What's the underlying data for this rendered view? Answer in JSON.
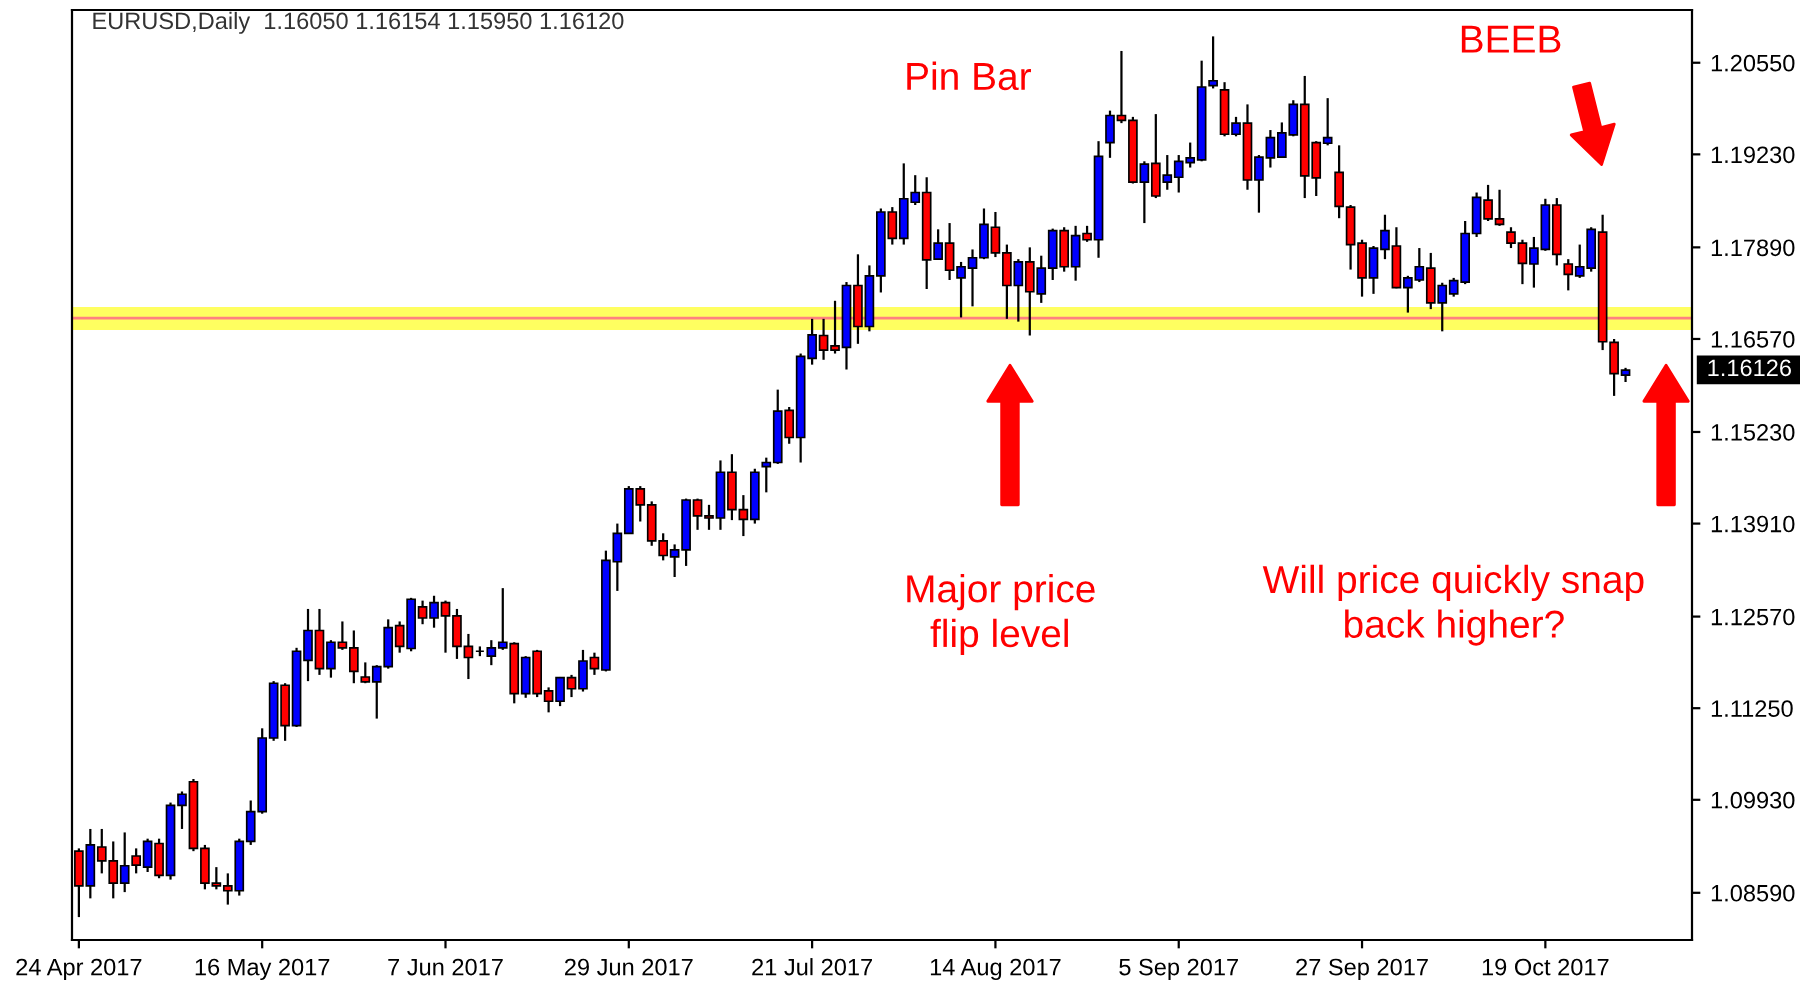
{
  "chart_data": {
    "type": "candlestick",
    "title": "EURUSD,Daily  1.16050 1.16154 1.15950 1.16120",
    "categories": [
      "24 Apr 2017",
      null,
      null,
      null,
      null,
      null,
      null,
      null,
      null,
      null,
      null,
      null,
      null,
      null,
      null,
      null,
      "16 May 2017",
      null,
      null,
      null,
      null,
      null,
      null,
      null,
      null,
      null,
      null,
      null,
      null,
      null,
      null,
      null,
      "7 Jun 2017",
      null,
      null,
      null,
      null,
      null,
      null,
      null,
      null,
      null,
      null,
      null,
      null,
      null,
      null,
      null,
      "29 Jun 2017",
      null,
      null,
      null,
      null,
      null,
      null,
      null,
      null,
      null,
      null,
      null,
      null,
      null,
      null,
      null,
      "21 Jul 2017",
      null,
      null,
      null,
      null,
      null,
      null,
      null,
      null,
      null,
      null,
      null,
      null,
      null,
      null,
      null,
      "14 Aug 2017",
      null,
      null,
      null,
      null,
      null,
      null,
      null,
      null,
      null,
      null,
      null,
      null,
      null,
      null,
      null,
      "5 Sep 2017",
      null,
      null,
      null,
      null,
      null,
      null,
      null,
      null,
      null,
      null,
      null,
      null,
      null,
      null,
      null,
      "27 Sep 2017",
      null,
      null,
      null,
      null,
      null,
      null,
      null,
      null,
      null,
      null,
      null,
      null,
      null,
      null,
      null,
      "19 Oct 2017",
      null,
      null,
      null,
      null,
      null,
      null,
      null
    ],
    "ohlc": [
      [
        1.0919,
        1.0923,
        1.0824,
        1.0869
      ],
      [
        1.0869,
        1.0951,
        1.0851,
        1.0928
      ],
      [
        1.0925,
        1.0951,
        1.0887,
        1.0905
      ],
      [
        1.0905,
        1.0933,
        1.0851,
        1.0873
      ],
      [
        1.0873,
        1.0946,
        1.086,
        1.0898
      ],
      [
        1.0912,
        1.0923,
        1.0887,
        1.0899
      ],
      [
        1.0896,
        1.0937,
        1.0889,
        1.0933
      ],
      [
        1.093,
        1.0937,
        1.088,
        1.0884
      ],
      [
        1.0884,
        1.0989,
        1.0878,
        1.0985
      ],
      [
        1.0985,
        1.1005,
        1.0951,
        1.1001
      ],
      [
        1.1019,
        1.1023,
        1.0919,
        1.0923
      ],
      [
        1.0923,
        1.0928,
        1.0864,
        1.0873
      ],
      [
        1.0873,
        1.0896,
        1.0864,
        1.0869
      ],
      [
        1.0869,
        1.0887,
        1.0842,
        1.0862
      ],
      [
        1.0862,
        1.0937,
        1.0855,
        1.0933
      ],
      [
        1.0933,
        1.0992,
        1.0928,
        1.0976
      ],
      [
        1.0976,
        1.1096,
        1.0973,
        1.1082
      ],
      [
        1.1082,
        1.1164,
        1.1078,
        1.1161
      ],
      [
        1.1158,
        1.1161,
        1.1078,
        1.11
      ],
      [
        1.11,
        1.1212,
        1.1098,
        1.1207
      ],
      [
        1.1194,
        1.1268,
        1.1164,
        1.1237
      ],
      [
        1.1237,
        1.1268,
        1.1173,
        1.1182
      ],
      [
        1.1182,
        1.1223,
        1.1169,
        1.122
      ],
      [
        1.122,
        1.125,
        1.1209,
        1.1212
      ],
      [
        1.1212,
        1.1237,
        1.1161,
        1.1178
      ],
      [
        1.117,
        1.1191,
        1.1161,
        1.1163
      ],
      [
        1.1163,
        1.1187,
        1.111,
        1.1185
      ],
      [
        1.1185,
        1.1253,
        1.1182,
        1.1241
      ],
      [
        1.1244,
        1.125,
        1.1205,
        1.1214
      ],
      [
        1.1211,
        1.1284,
        1.1207,
        1.1282
      ],
      [
        1.1271,
        1.128,
        1.1246,
        1.1255
      ],
      [
        1.1255,
        1.1287,
        1.1241,
        1.1277
      ],
      [
        1.1277,
        1.128,
        1.1205,
        1.1258
      ],
      [
        1.1258,
        1.1268,
        1.1196,
        1.1214
      ],
      [
        1.1214,
        1.1232,
        1.1167,
        1.1198
      ],
      [
        1.1207,
        1.1214,
        1.12,
        1.1207
      ],
      [
        1.12,
        1.1223,
        1.1187,
        1.1212
      ],
      [
        1.1212,
        1.1298,
        1.1209,
        1.122
      ],
      [
        1.1218,
        1.122,
        1.1132,
        1.1146
      ],
      [
        1.1146,
        1.12,
        1.114,
        1.1198
      ],
      [
        1.1207,
        1.1209,
        1.1141,
        1.1146
      ],
      [
        1.115,
        1.1155,
        1.1119,
        1.1135
      ],
      [
        1.1135,
        1.117,
        1.1128,
        1.1169
      ],
      [
        1.1169,
        1.1173,
        1.1141,
        1.1153
      ],
      [
        1.1153,
        1.1209,
        1.1149,
        1.1193
      ],
      [
        1.1198,
        1.1205,
        1.1173,
        1.1182
      ],
      [
        1.118,
        1.1352,
        1.1178,
        1.1338
      ],
      [
        1.1336,
        1.1391,
        1.1294,
        1.1377
      ],
      [
        1.1377,
        1.1445,
        1.1376,
        1.1441
      ],
      [
        1.1441,
        1.1445,
        1.1394,
        1.1418
      ],
      [
        1.1418,
        1.1423,
        1.1359,
        1.1366
      ],
      [
        1.1366,
        1.1377,
        1.1338,
        1.1345
      ],
      [
        1.1343,
        1.1361,
        1.1314,
        1.1353
      ],
      [
        1.1353,
        1.1427,
        1.133,
        1.1425
      ],
      [
        1.1425,
        1.1427,
        1.1382,
        1.1402
      ],
      [
        1.1402,
        1.1418,
        1.1382,
        1.1399
      ],
      [
        1.1399,
        1.1482,
        1.1382,
        1.1465
      ],
      [
        1.1465,
        1.1491,
        1.1396,
        1.1411
      ],
      [
        1.1411,
        1.1432,
        1.1373,
        1.1397
      ],
      [
        1.1397,
        1.147,
        1.1391,
        1.1465
      ],
      [
        1.1473,
        1.1486,
        1.1436,
        1.1479
      ],
      [
        1.1479,
        1.1584,
        1.1477,
        1.1553
      ],
      [
        1.1554,
        1.1559,
        1.1506,
        1.1515
      ],
      [
        1.1515,
        1.1636,
        1.1479,
        1.1632
      ],
      [
        1.1629,
        1.1686,
        1.162,
        1.1663
      ],
      [
        1.1662,
        1.1686,
        1.1627,
        1.1641
      ],
      [
        1.1647,
        1.1712,
        1.1636,
        1.1641
      ],
      [
        1.1645,
        1.1739,
        1.1613,
        1.1734
      ],
      [
        1.1734,
        1.1779,
        1.165,
        1.1675
      ],
      [
        1.1675,
        1.1763,
        1.1668,
        1.1748
      ],
      [
        1.1748,
        1.1845,
        1.1724,
        1.184
      ],
      [
        1.184,
        1.1847,
        1.1793,
        1.1802
      ],
      [
        1.1802,
        1.191,
        1.1793,
        1.1859
      ],
      [
        1.1854,
        1.1893,
        1.185,
        1.1868
      ],
      [
        1.1868,
        1.189,
        1.1729,
        1.1771
      ],
      [
        1.1772,
        1.1815,
        1.1771,
        1.1795
      ],
      [
        1.1795,
        1.1824,
        1.1742,
        1.1756
      ],
      [
        1.1745,
        1.1768,
        1.1688,
        1.1761
      ],
      [
        1.1759,
        1.1786,
        1.1704,
        1.1774
      ],
      [
        1.1774,
        1.1845,
        1.1772,
        1.1822
      ],
      [
        1.1818,
        1.184,
        1.1775,
        1.1781
      ],
      [
        1.1781,
        1.1793,
        1.1686,
        1.1734
      ],
      [
        1.1734,
        1.1772,
        1.1682,
        1.1768
      ],
      [
        1.1768,
        1.1789,
        1.1662,
        1.1725
      ],
      [
        1.1722,
        1.1777,
        1.1709,
        1.1759
      ],
      [
        1.1759,
        1.1816,
        1.1742,
        1.1813
      ],
      [
        1.1813,
        1.1818,
        1.1754,
        1.1761
      ],
      [
        1.1761,
        1.182,
        1.1741,
        1.1806
      ],
      [
        1.1809,
        1.182,
        1.1797,
        1.18
      ],
      [
        1.18,
        1.1942,
        1.1774,
        1.192
      ],
      [
        1.194,
        1.1986,
        1.1918,
        1.1979
      ],
      [
        1.1979,
        1.2072,
        1.1968,
        1.1972
      ],
      [
        1.1972,
        1.1977,
        1.1881,
        1.1883
      ],
      [
        1.1883,
        1.1913,
        1.1824,
        1.1909
      ],
      [
        1.191,
        1.1981,
        1.186,
        1.1863
      ],
      [
        1.1883,
        1.1922,
        1.1872,
        1.1893
      ],
      [
        1.189,
        1.1922,
        1.1868,
        1.1913
      ],
      [
        1.1911,
        1.194,
        1.1904,
        1.1918
      ],
      [
        1.1915,
        1.2058,
        1.1913,
        1.202
      ],
      [
        1.2022,
        1.2093,
        1.2018,
        1.2029
      ],
      [
        1.2016,
        1.2027,
        1.1949,
        1.1952
      ],
      [
        1.1952,
        1.1977,
        1.1949,
        1.1968
      ],
      [
        1.1968,
        1.1995,
        1.1872,
        1.1886
      ],
      [
        1.1886,
        1.1922,
        1.1839,
        1.1919
      ],
      [
        1.1918,
        1.1958,
        1.1904,
        1.1947
      ],
      [
        1.1919,
        1.1969,
        1.1918,
        1.1954
      ],
      [
        1.1951,
        1.2001,
        1.1949,
        1.1995
      ],
      [
        1.1995,
        1.2036,
        1.186,
        1.1892
      ],
      [
        1.194,
        1.1942,
        1.1863,
        1.1889
      ],
      [
        1.1939,
        1.2004,
        1.1936,
        1.1947
      ],
      [
        1.1897,
        1.1936,
        1.1831,
        1.1848
      ],
      [
        1.1847,
        1.185,
        1.1757,
        1.1793
      ],
      [
        1.1795,
        1.18,
        1.1718,
        1.1745
      ],
      [
        1.1745,
        1.1791,
        1.1722,
        1.1788
      ],
      [
        1.1786,
        1.1836,
        1.1772,
        1.1813
      ],
      [
        1.1791,
        1.1818,
        1.173,
        1.1731
      ],
      [
        1.1731,
        1.1748,
        1.1695,
        1.1745
      ],
      [
        1.1742,
        1.1788,
        1.1739,
        1.1761
      ],
      [
        1.1759,
        1.1781,
        1.17,
        1.1709
      ],
      [
        1.1709,
        1.1738,
        1.1668,
        1.1734
      ],
      [
        1.1722,
        1.1745,
        1.1718,
        1.1741
      ],
      [
        1.1739,
        1.1827,
        1.1736,
        1.1809
      ],
      [
        1.1809,
        1.1868,
        1.1804,
        1.1861
      ],
      [
        1.1857,
        1.1879,
        1.1827,
        1.183
      ],
      [
        1.183,
        1.1872,
        1.182,
        1.1822
      ],
      [
        1.1811,
        1.1818,
        1.1788,
        1.1795
      ],
      [
        1.1795,
        1.18,
        1.1736,
        1.1766
      ],
      [
        1.1765,
        1.1804,
        1.1731,
        1.1788
      ],
      [
        1.1786,
        1.1859,
        1.1784,
        1.185
      ],
      [
        1.185,
        1.186,
        1.1763,
        1.1779
      ],
      [
        1.1765,
        1.1772,
        1.1727,
        1.175
      ],
      [
        1.1748,
        1.1793,
        1.1745,
        1.1761
      ],
      [
        1.1759,
        1.1818,
        1.1754,
        1.1815
      ],
      [
        1.1811,
        1.1836,
        1.1641,
        1.1653
      ],
      [
        1.1652,
        1.1657,
        1.1575,
        1.1607
      ],
      [
        1.1605,
        1.16154,
        1.1595,
        1.1612
      ]
    ],
    "colors": [
      "#ff0000",
      "#0000ff",
      "#ff0000",
      "#ff0000",
      "#0000ff",
      "#ff0000",
      "#0000ff",
      "#ff0000",
      "#0000ff",
      "#0000ff",
      "#ff0000",
      "#ff0000",
      "#ff0000",
      "#ff0000",
      "#0000ff",
      "#0000ff",
      "#0000ff",
      "#0000ff",
      "#ff0000",
      "#0000ff",
      "#0000ff",
      "#ff0000",
      "#0000ff",
      "#ff0000",
      "#ff0000",
      "#ff0000",
      "#0000ff",
      "#0000ff",
      "#ff0000",
      "#0000ff",
      "#ff0000",
      "#0000ff",
      "#ff0000",
      "#ff0000",
      "#ff0000",
      "#000000",
      "#0000ff",
      "#0000ff",
      "#ff0000",
      "#0000ff",
      "#ff0000",
      "#ff0000",
      "#0000ff",
      "#ff0000",
      "#0000ff",
      "#ff0000",
      "#0000ff",
      "#0000ff",
      "#0000ff",
      "#ff0000",
      "#ff0000",
      "#ff0000",
      "#0000ff",
      "#0000ff",
      "#ff0000",
      "#ff0000",
      "#0000ff",
      "#ff0000",
      "#ff0000",
      "#0000ff",
      "#0000ff",
      "#0000ff",
      "#ff0000",
      "#0000ff",
      "#0000ff",
      "#ff0000",
      "#ff0000",
      "#0000ff",
      "#ff0000",
      "#0000ff",
      "#0000ff",
      "#ff0000",
      "#0000ff",
      "#0000ff",
      "#ff0000",
      "#0000ff",
      "#ff0000",
      "#0000ff",
      "#0000ff",
      "#0000ff",
      "#ff0000",
      "#ff0000",
      "#0000ff",
      "#ff0000",
      "#0000ff",
      "#0000ff",
      "#ff0000",
      "#0000ff",
      "#ff0000",
      "#0000ff",
      "#0000ff",
      "#ff0000",
      "#ff0000",
      "#0000ff",
      "#ff0000",
      "#0000ff",
      "#0000ff",
      "#0000ff",
      "#0000ff",
      "#0000ff",
      "#ff0000",
      "#0000ff",
      "#ff0000",
      "#0000ff",
      "#0000ff",
      "#0000ff",
      "#0000ff",
      "#ff0000",
      "#ff0000",
      "#0000ff",
      "#ff0000",
      "#ff0000",
      "#ff0000",
      "#0000ff",
      "#0000ff",
      "#ff0000",
      "#0000ff",
      "#0000ff",
      "#ff0000",
      "#0000ff",
      "#0000ff",
      "#0000ff",
      "#0000ff",
      "#ff0000",
      "#ff0000",
      "#ff0000",
      "#ff0000",
      "#0000ff",
      "#0000ff",
      "#ff0000",
      "#ff0000",
      "#0000ff",
      "#0000ff",
      "#ff0000",
      "#ff0000",
      "#0000ff"
    ],
    "ylim": [
      1.0791,
      1.2131
    ],
    "yticks": [
      {
        "value": 1.0859,
        "label": "1.08590"
      },
      {
        "value": 1.0993,
        "label": "1.09930"
      },
      {
        "value": 1.1125,
        "label": "1.11250"
      },
      {
        "value": 1.1257,
        "label": "1.12570"
      },
      {
        "value": 1.1391,
        "label": "1.13910"
      },
      {
        "value": 1.1523,
        "label": "1.15230"
      },
      {
        "value": 1.1657,
        "label": "1.16570"
      },
      {
        "value": 1.1789,
        "label": "1.17890"
      },
      {
        "value": 1.1923,
        "label": "1.19230"
      },
      {
        "value": 1.2055,
        "label": "1.20550"
      }
    ],
    "ref_lines": [
      {
        "axis": "y",
        "value": 1.1687,
        "color": "#ff8080",
        "line_style": "solid"
      }
    ],
    "bands": [
      {
        "axis": "y",
        "from": 1.167,
        "to": 1.1703,
        "color": "#ffff44"
      }
    ],
    "annotations": [
      "Pin Bar",
      "BEEB",
      "Major price\nflip level",
      "Will price quickly snap\nback higher?",
      "1.16126"
    ],
    "grid": false
  }
}
